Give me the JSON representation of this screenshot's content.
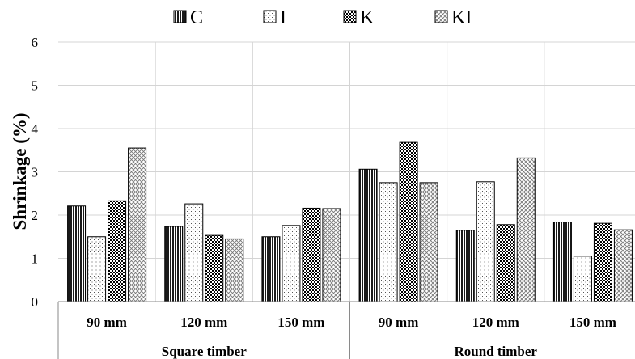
{
  "chart_data": {
    "type": "bar",
    "ylabel": "Shrinkage (%)",
    "xlabel": "",
    "ylim": [
      0,
      6
    ],
    "yticks": [
      "0",
      "1",
      "2",
      "3",
      "4",
      "5",
      "6"
    ],
    "grid": true,
    "legend_position": "top",
    "groups": [
      {
        "label": "Square timber",
        "categories": [
          "90 mm",
          "120 mm",
          "150 mm"
        ]
      },
      {
        "label": "Round timber",
        "categories": [
          "90 mm",
          "120 mm",
          "150 mm"
        ]
      }
    ],
    "categories": [
      "90 mm",
      "120 mm",
      "150 mm",
      "90 mm",
      "120 mm",
      "150 mm"
    ],
    "series": [
      {
        "name": "C",
        "pattern": "vertical-stripes",
        "values": [
          2.21,
          1.74,
          1.5,
          3.06,
          1.65,
          1.84
        ]
      },
      {
        "name": "I",
        "pattern": "dots",
        "values": [
          1.5,
          2.26,
          1.76,
          2.75,
          2.77,
          1.05
        ]
      },
      {
        "name": "K",
        "pattern": "checker",
        "values": [
          2.33,
          1.53,
          2.16,
          3.68,
          1.78,
          1.81
        ]
      },
      {
        "name": "KI",
        "pattern": "diamond-crosshatch",
        "values": [
          3.55,
          1.45,
          2.15,
          2.75,
          3.32,
          1.66
        ]
      }
    ]
  }
}
